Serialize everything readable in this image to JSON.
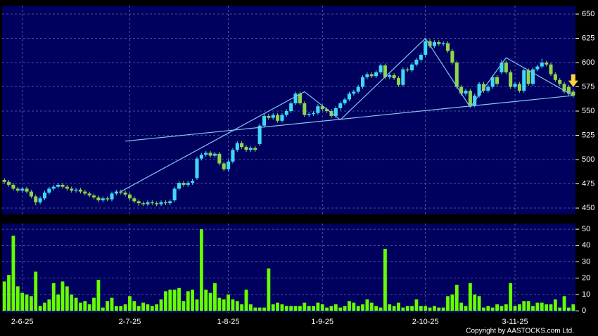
{
  "chart_data": [
    {
      "type": "candlestick",
      "categories": [
        null,
        null,
        null,
        null,
        "2-6-25",
        null,
        null,
        null,
        null,
        null,
        null,
        null,
        null,
        null,
        null,
        null,
        null,
        null,
        null,
        null,
        null,
        null,
        null,
        null,
        null,
        null,
        null,
        null,
        "2-7-25",
        null,
        null,
        null,
        null,
        null,
        null,
        null,
        null,
        null,
        null,
        null,
        null,
        null,
        null,
        null,
        null,
        null,
        null,
        null,
        null,
        null,
        "1-8-25",
        null,
        null,
        null,
        null,
        null,
        null,
        null,
        null,
        null,
        null,
        null,
        null,
        null,
        null,
        null,
        null,
        null,
        null,
        null,
        null,
        "1-9-25",
        null,
        null,
        null,
        null,
        null,
        null,
        null,
        null,
        null,
        null,
        null,
        null,
        null,
        null,
        null,
        null,
        null,
        null,
        null,
        null,
        null,
        null,
        "2-10-25",
        null,
        null,
        null,
        null,
        null,
        null,
        null,
        null,
        null,
        null,
        null,
        null,
        null,
        null,
        null,
        null,
        null,
        null,
        null,
        "3-11-25",
        null,
        null,
        null,
        null,
        null,
        null,
        null,
        null,
        null,
        null,
        null,
        null,
        null
      ],
      "open": [
        479,
        477,
        474,
        470,
        468,
        470,
        467,
        462,
        456,
        460,
        466,
        470,
        472,
        474,
        472,
        470,
        468,
        469,
        467,
        465,
        463,
        461,
        458,
        460,
        459,
        465,
        467,
        466,
        464,
        460,
        457,
        455,
        454,
        456,
        455,
        454,
        456,
        455,
        458,
        470,
        476,
        474,
        476,
        481,
        501,
        505,
        507,
        504,
        506,
        496,
        490,
        498,
        510,
        517,
        513,
        510,
        512,
        516,
        535,
        545,
        543,
        546,
        540,
        546,
        550,
        558,
        568,
        558,
        546,
        547,
        548,
        555,
        552,
        550,
        545,
        553,
        558,
        562,
        568,
        570,
        575,
        585,
        588,
        586,
        590,
        597,
        585,
        587,
        584,
        577,
        593,
        592,
        598,
        603,
        608,
        622,
        617,
        621,
        619,
        620,
        612,
        600,
        575,
        568,
        571,
        556,
        566,
        578,
        571,
        575,
        585,
        590,
        600,
        590,
        575,
        578,
        571,
        592,
        578,
        593,
        596,
        600,
        598,
        588,
        582,
        578,
        575,
        570
      ],
      "high": [
        481,
        479,
        476,
        472,
        472,
        472,
        469,
        464,
        462,
        468,
        472,
        474,
        476,
        476,
        474,
        472,
        471,
        471,
        469,
        467,
        465,
        463,
        462,
        462,
        467,
        469,
        469,
        468,
        466,
        462,
        459,
        457,
        458,
        458,
        457,
        458,
        458,
        459,
        472,
        478,
        478,
        478,
        480,
        503,
        507,
        509,
        509,
        508,
        508,
        498,
        500,
        512,
        519,
        519,
        515,
        514,
        514,
        537,
        547,
        547,
        548,
        548,
        548,
        552,
        560,
        570,
        570,
        560,
        549,
        550,
        557,
        557,
        554,
        552,
        555,
        560,
        564,
        570,
        572,
        577,
        587,
        590,
        590,
        592,
        599,
        599,
        589,
        589,
        586,
        595,
        595,
        600,
        605,
        610,
        625,
        624,
        623,
        623,
        622,
        622,
        614,
        602,
        577,
        573,
        573,
        568,
        580,
        580,
        577,
        587,
        587,
        603,
        602,
        592,
        580,
        580,
        594,
        594,
        595,
        598,
        604,
        602,
        600,
        590,
        584,
        580,
        577,
        572
      ],
      "low": [
        475,
        472,
        468,
        466,
        466,
        465,
        460,
        453,
        454,
        458,
        464,
        468,
        470,
        470,
        468,
        466,
        466,
        465,
        463,
        461,
        459,
        456,
        456,
        457,
        457,
        463,
        464,
        462,
        458,
        455,
        452,
        452,
        452,
        453,
        452,
        452,
        453,
        453,
        456,
        468,
        472,
        472,
        474,
        479,
        499,
        503,
        502,
        502,
        494,
        488,
        488,
        496,
        508,
        511,
        508,
        508,
        508,
        514,
        533,
        541,
        541,
        538,
        538,
        544,
        548,
        556,
        556,
        544,
        544,
        545,
        546,
        550,
        548,
        543,
        543,
        551,
        556,
        560,
        566,
        568,
        573,
        583,
        584,
        584,
        588,
        583,
        583,
        582,
        575,
        575,
        590,
        590,
        596,
        601,
        606,
        615,
        615,
        617,
        617,
        610,
        598,
        573,
        566,
        566,
        554,
        554,
        564,
        569,
        569,
        573,
        576,
        588,
        588,
        573,
        573,
        569,
        569,
        576,
        576,
        591,
        594,
        596,
        586,
        580,
        576,
        568,
        566,
        564
      ],
      "close": [
        477,
        474,
        470,
        468,
        470,
        467,
        462,
        456,
        460,
        466,
        470,
        472,
        474,
        472,
        470,
        468,
        469,
        467,
        465,
        463,
        461,
        458,
        460,
        459,
        465,
        467,
        466,
        464,
        460,
        457,
        455,
        454,
        456,
        455,
        454,
        456,
        455,
        457,
        470,
        476,
        474,
        476,
        478,
        501,
        505,
        507,
        504,
        506,
        496,
        490,
        498,
        510,
        517,
        513,
        510,
        512,
        510,
        535,
        545,
        543,
        546,
        540,
        546,
        550,
        558,
        568,
        558,
        546,
        547,
        548,
        555,
        552,
        550,
        545,
        553,
        558,
        562,
        568,
        570,
        575,
        585,
        588,
        586,
        590,
        597,
        585,
        587,
        584,
        577,
        593,
        592,
        598,
        603,
        608,
        622,
        617,
        621,
        619,
        620,
        612,
        600,
        575,
        568,
        571,
        556,
        566,
        578,
        571,
        575,
        585,
        578,
        600,
        590,
        575,
        578,
        571,
        592,
        578,
        593,
        596,
        600,
        598,
        588,
        582,
        578,
        570,
        568,
        566
      ],
      "up_color": "#3fd8f5",
      "down_color": "#8fd44a",
      "trendlines": [
        {
          "x": [
            27,
            127
          ],
          "y": [
            519,
            566
          ]
        },
        {
          "x": [
            26,
            67,
            75,
            94,
            104,
            112,
            127
          ],
          "y": [
            467,
            570,
            541,
            625,
            554,
            605,
            566
          ]
        }
      ],
      "trendline_color": "#86c4f0",
      "ylim": [
        443.5,
        658.7
      ],
      "yticks": [
        450,
        475,
        500,
        525,
        550,
        575,
        600,
        625,
        650
      ],
      "grid": true
    },
    {
      "type": "bar",
      "values": [
        18,
        22,
        46,
        15,
        11,
        10,
        9,
        24,
        3,
        5,
        7,
        17,
        10,
        18,
        15,
        10,
        8,
        5,
        6,
        4,
        8,
        19,
        2,
        6,
        8,
        3,
        3,
        4,
        9,
        6,
        3,
        5,
        4,
        3,
        4,
        7,
        12,
        13,
        13,
        14,
        6,
        12,
        13,
        7,
        50,
        13,
        11,
        17,
        8,
        7,
        10,
        7,
        6,
        4,
        13,
        4,
        2,
        2,
        2,
        26,
        4,
        5,
        4,
        3,
        3,
        3,
        3,
        5,
        3,
        3,
        5,
        4,
        2,
        3,
        4,
        2,
        3,
        6,
        5,
        3,
        4,
        7,
        5,
        3,
        2,
        38,
        4,
        3,
        5,
        2,
        3,
        3,
        7,
        3,
        3,
        2,
        3,
        2,
        2,
        9,
        10,
        16,
        5,
        3,
        17,
        10,
        9,
        2,
        3,
        2,
        4,
        3,
        4,
        17,
        3,
        4,
        6,
        6,
        3,
        5,
        5,
        4,
        4,
        7,
        2,
        9,
        2,
        4
      ],
      "color": "#66ff00",
      "ylim": [
        -1.2,
        53.5
      ],
      "yticks": [
        0,
        10,
        20,
        30,
        40,
        50
      ],
      "grid": true
    }
  ],
  "copyright": "Copyright by AASTOCKS.com Ltd."
}
